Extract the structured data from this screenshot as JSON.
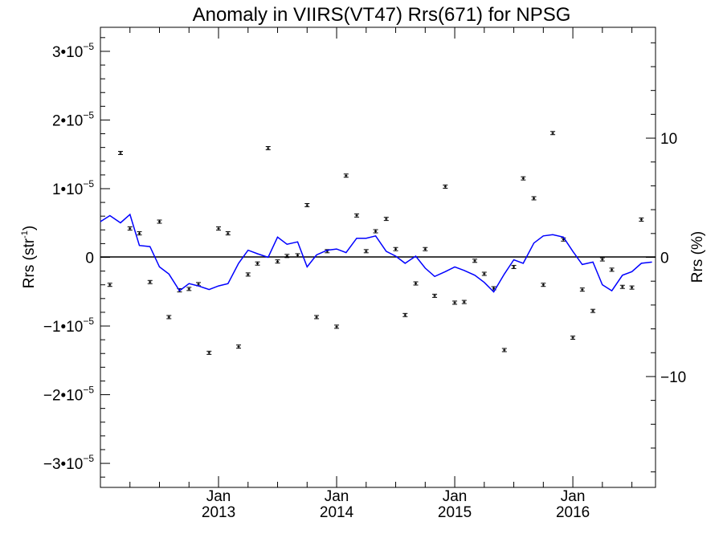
{
  "chart_data": {
    "type": "scatter",
    "title": "Anomaly in VIIRS(VT47) Rrs(671) for NPSG",
    "ylabel_left": {
      "base": "Rrs (str",
      "sup": "-1",
      "close": ")"
    },
    "ylabel_right": "Rrs (%)",
    "y_left_ticks": [
      {
        "value": 3e-05,
        "mant": "3•10",
        "exp": "−5"
      },
      {
        "value": 2e-05,
        "mant": "2•10",
        "exp": "−5"
      },
      {
        "value": 1e-05,
        "mant": "1•10",
        "exp": "−5"
      },
      {
        "value": 0,
        "mant": "0",
        "exp": ""
      },
      {
        "value": -1e-05,
        "mant": "−1•10",
        "exp": "−5"
      },
      {
        "value": -2e-05,
        "mant": "−2•10",
        "exp": "−5"
      },
      {
        "value": -3e-05,
        "mant": "−3•10",
        "exp": "−5"
      }
    ],
    "y_right_ticks": [
      {
        "value": 10,
        "label": "10"
      },
      {
        "value": 0,
        "label": "0"
      },
      {
        "value": -10,
        "label": "−10"
      }
    ],
    "y_left_range": [
      -3.35e-05,
      3.35e-05
    ],
    "y_right_range": [
      -19.3,
      19.3
    ],
    "x_range": [
      2012.0,
      2016.7
    ],
    "x_major_ticks": [
      {
        "value": 2013.0,
        "month": "Jan",
        "year": "2013"
      },
      {
        "value": 2014.0,
        "month": "Jan",
        "year": "2014"
      },
      {
        "value": 2015.0,
        "month": "Jan",
        "year": "2015"
      },
      {
        "value": 2016.0,
        "month": "Jan",
        "year": "2016"
      }
    ],
    "x_minor_tick_step": 0.25,
    "zero_line": true,
    "series": [
      {
        "kind": "points_with_errorbars",
        "color": "#000000",
        "error": 2e-07,
        "points": [
          [
            2012.08,
            -4e-06
          ],
          [
            2012.17,
            1.52e-05
          ],
          [
            2012.25,
            4.2e-06
          ],
          [
            2012.33,
            3.5e-06
          ],
          [
            2012.42,
            -3.6e-06
          ],
          [
            2012.5,
            5.2e-06
          ],
          [
            2012.58,
            -8.7e-06
          ],
          [
            2012.67,
            -4.8e-06
          ],
          [
            2012.75,
            -4.6e-06
          ],
          [
            2012.83,
            -3.9e-06
          ],
          [
            2012.92,
            -1.39e-05
          ],
          [
            2013.0,
            4.2e-06
          ],
          [
            2013.08,
            3.5e-06
          ],
          [
            2013.17,
            -1.3e-05
          ],
          [
            2013.25,
            -2.5e-06
          ],
          [
            2013.33,
            -9e-07
          ],
          [
            2013.42,
            1.59e-05
          ],
          [
            2013.5,
            -6e-07
          ],
          [
            2013.58,
            2e-07
          ],
          [
            2013.67,
            3e-07
          ],
          [
            2013.75,
            7.6e-06
          ],
          [
            2013.83,
            -8.7e-06
          ],
          [
            2013.92,
            9e-07
          ],
          [
            2014.0,
            -1.01e-05
          ],
          [
            2014.08,
            1.19e-05
          ],
          [
            2014.17,
            6.1e-06
          ],
          [
            2014.25,
            9e-07
          ],
          [
            2014.33,
            3.8e-06
          ],
          [
            2014.42,
            5.6e-06
          ],
          [
            2014.5,
            1.2e-06
          ],
          [
            2014.58,
            -8.4e-06
          ],
          [
            2014.67,
            -3.8e-06
          ],
          [
            2014.75,
            1.2e-06
          ],
          [
            2014.83,
            -5.6e-06
          ],
          [
            2014.92,
            1.03e-05
          ],
          [
            2015.0,
            -6.6e-06
          ],
          [
            2015.08,
            -6.5e-06
          ],
          [
            2015.17,
            -5e-07
          ],
          [
            2015.25,
            -2.4e-06
          ],
          [
            2015.33,
            -4.5e-06
          ],
          [
            2015.42,
            -1.35e-05
          ],
          [
            2015.5,
            -1.4e-06
          ],
          [
            2015.58,
            1.15e-05
          ],
          [
            2015.67,
            8.6e-06
          ],
          [
            2015.75,
            -4e-06
          ],
          [
            2015.83,
            1.81e-05
          ],
          [
            2015.92,
            2.6e-06
          ],
          [
            2016.0,
            -1.17e-05
          ],
          [
            2016.08,
            -4.7e-06
          ],
          [
            2016.17,
            -7.8e-06
          ],
          [
            2016.25,
            -3e-07
          ],
          [
            2016.33,
            -1.8e-06
          ],
          [
            2016.42,
            -4.3e-06
          ],
          [
            2016.5,
            -4.4e-06
          ],
          [
            2016.58,
            5.5e-06
          ]
        ]
      },
      {
        "kind": "line",
        "color": "#0000ff",
        "points": [
          [
            2012.0,
            3.0
          ],
          [
            2012.08,
            3.5
          ],
          [
            2012.17,
            2.9
          ],
          [
            2012.25,
            3.6
          ],
          [
            2012.33,
            1.0
          ],
          [
            2012.42,
            0.9
          ],
          [
            2012.5,
            -0.8
          ],
          [
            2012.58,
            -1.4
          ],
          [
            2012.67,
            -2.8
          ],
          [
            2012.75,
            -2.2
          ],
          [
            2012.83,
            -2.4
          ],
          [
            2012.92,
            -2.7
          ],
          [
            2013.0,
            -2.4
          ],
          [
            2013.08,
            -2.2
          ],
          [
            2013.17,
            -0.5
          ],
          [
            2013.25,
            0.6
          ],
          [
            2013.33,
            0.3
          ],
          [
            2013.42,
            0.0
          ],
          [
            2013.5,
            1.7
          ],
          [
            2013.58,
            1.1
          ],
          [
            2013.67,
            1.3
          ],
          [
            2013.75,
            -0.8
          ],
          [
            2013.83,
            0.2
          ],
          [
            2013.92,
            0.6
          ],
          [
            2014.0,
            0.7
          ],
          [
            2014.08,
            0.4
          ],
          [
            2014.17,
            1.6
          ],
          [
            2014.25,
            1.6
          ],
          [
            2014.33,
            1.8
          ],
          [
            2014.42,
            0.5
          ],
          [
            2014.5,
            0.1
          ],
          [
            2014.58,
            -0.5
          ],
          [
            2014.67,
            0.1
          ],
          [
            2014.75,
            -0.9
          ],
          [
            2014.83,
            -1.6
          ],
          [
            2014.92,
            -1.2
          ],
          [
            2015.0,
            -0.8
          ],
          [
            2015.08,
            -1.1
          ],
          [
            2015.17,
            -1.5
          ],
          [
            2015.25,
            -2.1
          ],
          [
            2015.33,
            -2.9
          ],
          [
            2015.42,
            -1.4
          ],
          [
            2015.5,
            -0.2
          ],
          [
            2015.58,
            -0.5
          ],
          [
            2015.67,
            1.2
          ],
          [
            2015.75,
            1.8
          ],
          [
            2015.83,
            1.9
          ],
          [
            2015.92,
            1.7
          ],
          [
            2016.0,
            0.5
          ],
          [
            2016.08,
            -0.6
          ],
          [
            2016.17,
            -0.4
          ],
          [
            2016.25,
            -2.3
          ],
          [
            2016.33,
            -2.8
          ],
          [
            2016.42,
            -1.5
          ],
          [
            2016.5,
            -1.2
          ],
          [
            2016.58,
            -0.5
          ],
          [
            2016.67,
            -0.4
          ]
        ]
      }
    ]
  }
}
